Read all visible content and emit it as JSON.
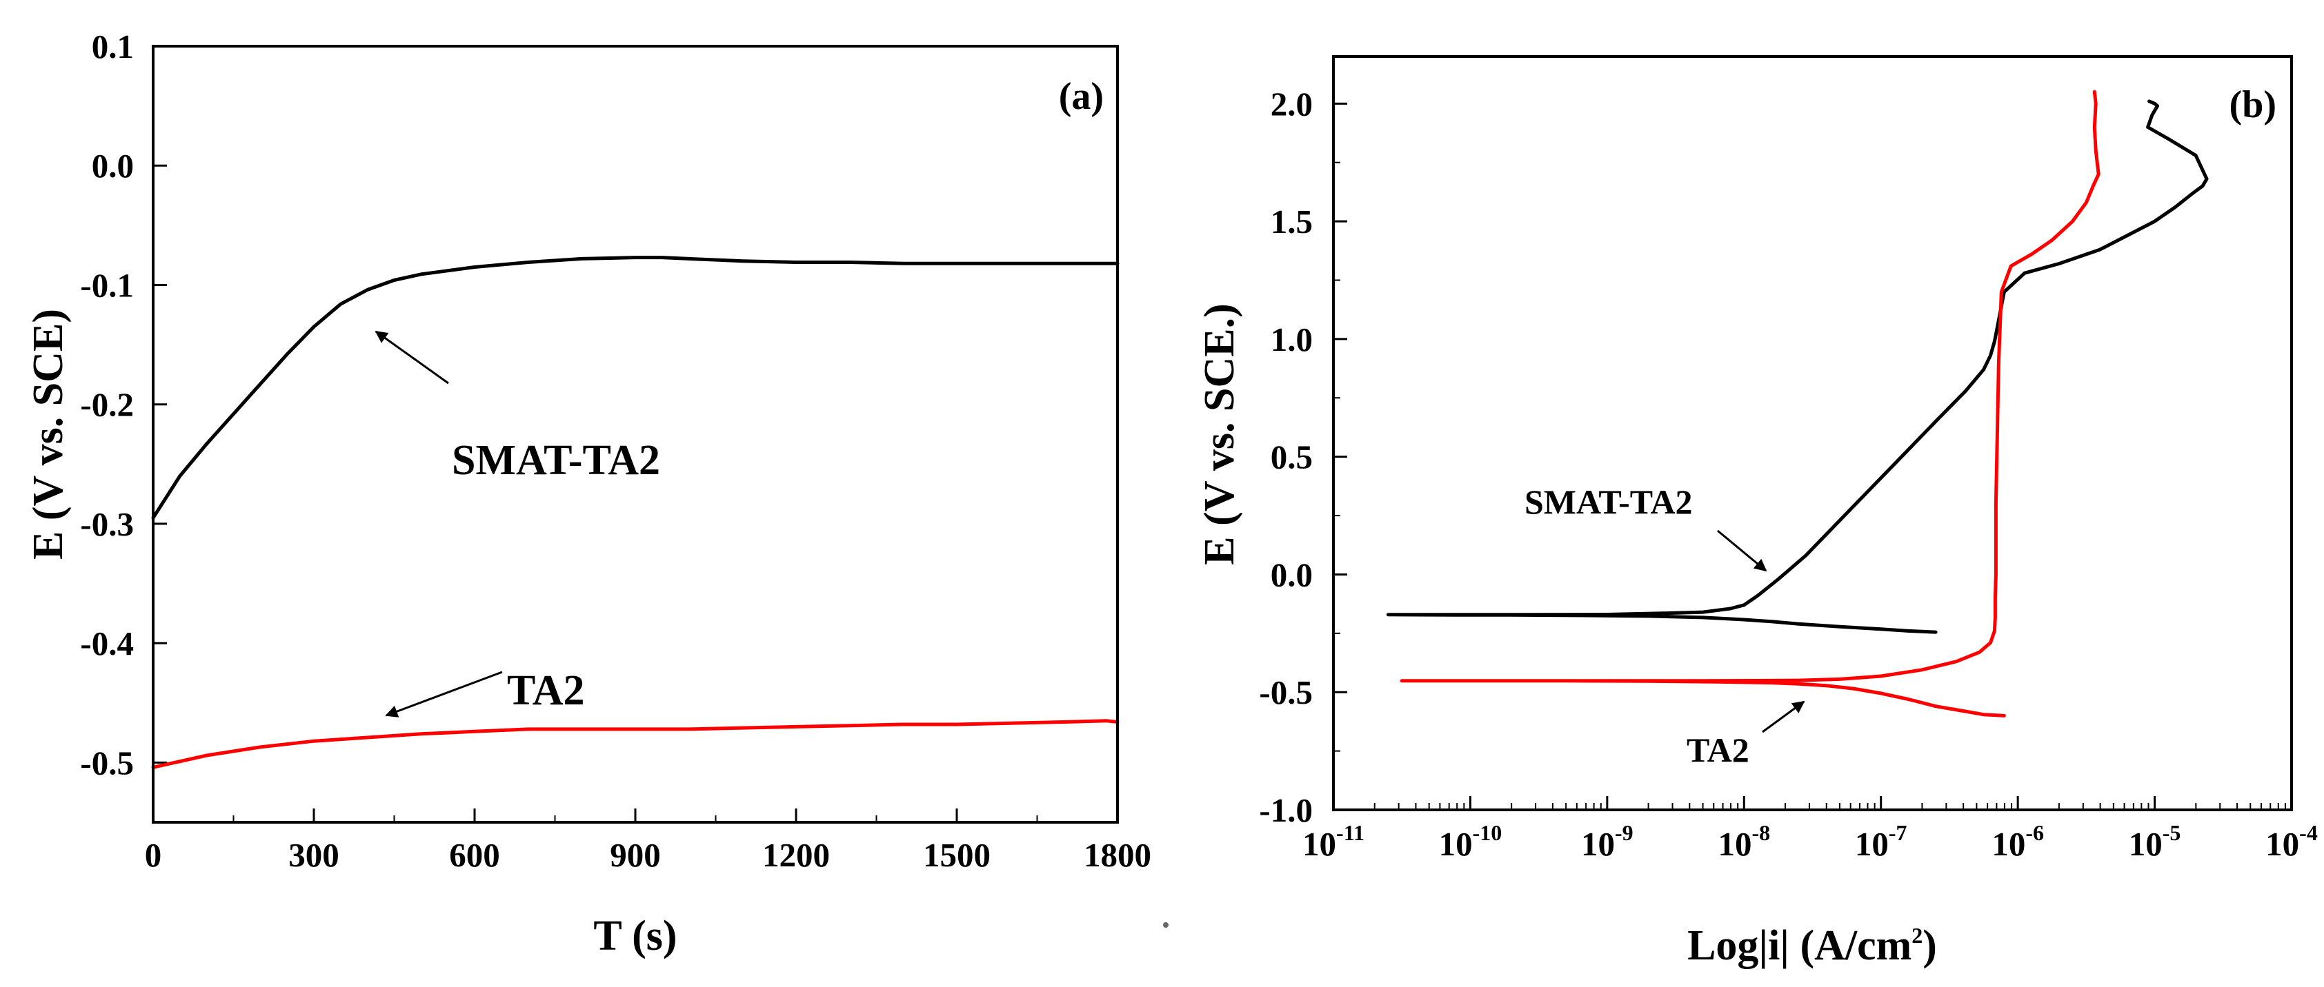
{
  "chart_data": [
    {
      "type": "line",
      "panel_label": "(a)",
      "xlabel": "T (s)",
      "ylabel": "E (V vs. SCE)",
      "xlim": [
        0,
        1800
      ],
      "ylim": [
        -0.55,
        0.1
      ],
      "x_ticks": [
        "0",
        "300",
        "600",
        "900",
        "1200",
        "1500",
        "1800"
      ],
      "y_ticks": [
        "0.1",
        "0.0",
        "-0.1",
        "-0.2",
        "-0.3",
        "-0.4",
        "-0.5"
      ],
      "series": [
        {
          "name": "SMAT-TA2",
          "color": "#000000",
          "x": [
            0,
            50,
            100,
            150,
            200,
            250,
            300,
            350,
            400,
            450,
            500,
            600,
            700,
            800,
            900,
            950,
            1000,
            1100,
            1200,
            1300,
            1400,
            1500,
            1600,
            1700,
            1800
          ],
          "y": [
            -0.295,
            -0.26,
            -0.233,
            -0.208,
            -0.183,
            -0.158,
            -0.135,
            -0.116,
            -0.104,
            -0.096,
            -0.091,
            -0.085,
            -0.081,
            -0.078,
            -0.077,
            -0.077,
            -0.078,
            -0.08,
            -0.081,
            -0.081,
            -0.082,
            -0.082,
            -0.082,
            -0.082,
            -0.082
          ]
        },
        {
          "name": "TA2",
          "color": "#ff0000",
          "x": [
            0,
            50,
            100,
            200,
            300,
            400,
            500,
            600,
            700,
            800,
            900,
            1000,
            1100,
            1200,
            1300,
            1400,
            1500,
            1600,
            1700,
            1780,
            1800
          ],
          "y": [
            -0.504,
            -0.499,
            -0.494,
            -0.487,
            -0.482,
            -0.479,
            -0.476,
            -0.474,
            -0.472,
            -0.472,
            -0.472,
            -0.472,
            -0.471,
            -0.47,
            -0.469,
            -0.468,
            -0.468,
            -0.467,
            -0.466,
            -0.465,
            -0.466
          ]
        }
      ],
      "annotations": [
        "SMAT-TA2",
        "TA2"
      ]
    },
    {
      "type": "line",
      "panel_label": "(b)",
      "xlabel": "Log|i| (A/cm",
      "xlabel_sup": "2",
      "xlabel_end": ")",
      "ylabel": "E (V vs. SCE.)",
      "xscale": "log",
      "xlim": [
        -11,
        -4
      ],
      "ylim": [
        -1.0,
        2.2
      ],
      "x_tick_values": [
        -11,
        -10,
        -9,
        -8,
        -7,
        -6,
        -5,
        -4
      ],
      "x_tick_base": "10",
      "x_tick_exponents": [
        "-11",
        "-10",
        "-9",
        "-8",
        "-7",
        "-6",
        "-5",
        "-4"
      ],
      "y_ticks": [
        "2.0",
        "1.5",
        "1.0",
        "0.5",
        "0.0",
        "-0.5",
        "-1.0"
      ],
      "series": [
        {
          "name": "SMAT-TA2",
          "color": "#000000",
          "log_i": [
            -6.6,
            -6.8,
            -7.0,
            -7.3,
            -7.6,
            -7.8,
            -8.0,
            -8.3,
            -8.7,
            -9.2,
            -9.7,
            -10.1,
            -10.6,
            -10.2,
            -9.6,
            -9.0,
            -8.6,
            -8.3,
            -8.1,
            -8.0,
            -7.9,
            -7.75,
            -7.55,
            -7.35,
            -7.1,
            -6.85,
            -6.6,
            -6.38,
            -6.25,
            -6.2,
            -6.17,
            -6.15,
            -6.1,
            -5.95,
            -5.7,
            -5.4,
            -5.2,
            -5.0,
            -4.85,
            -4.72,
            -4.65,
            -4.62,
            -4.7,
            -4.9,
            -5.05,
            -5.02,
            -4.98,
            -5.0,
            -5.04
          ],
          "E": [
            -0.245,
            -0.24,
            -0.232,
            -0.222,
            -0.21,
            -0.2,
            -0.192,
            -0.183,
            -0.177,
            -0.174,
            -0.172,
            -0.172,
            -0.171,
            -0.171,
            -0.171,
            -0.17,
            -0.165,
            -0.16,
            -0.145,
            -0.13,
            -0.09,
            -0.02,
            0.08,
            0.2,
            0.35,
            0.5,
            0.65,
            0.78,
            0.87,
            0.93,
            0.99,
            1.05,
            1.2,
            1.28,
            1.32,
            1.38,
            1.44,
            1.5,
            1.56,
            1.62,
            1.65,
            1.68,
            1.78,
            1.85,
            1.9,
            1.95,
            1.99,
            2.0,
            2.01
          ]
        },
        {
          "name": "TA2",
          "color": "#ff0000",
          "log_i": [
            -6.1,
            -6.25,
            -6.4,
            -6.6,
            -6.8,
            -7.0,
            -7.2,
            -7.4,
            -7.6,
            -7.8,
            -8.2,
            -8.7,
            -9.3,
            -9.9,
            -10.5,
            -10.0,
            -9.4,
            -8.8,
            -8.3,
            -7.9,
            -7.6,
            -7.3,
            -7.0,
            -6.7,
            -6.45,
            -6.28,
            -6.2,
            -6.17,
            -6.165,
            -6.165,
            -6.16,
            -6.16,
            -6.15,
            -6.14,
            -6.12,
            -6.05,
            -5.9,
            -5.75,
            -5.6,
            -5.5,
            -5.45,
            -5.41,
            -5.43,
            -5.44,
            -5.43,
            -5.44
          ],
          "E": [
            -0.6,
            -0.595,
            -0.58,
            -0.56,
            -0.53,
            -0.505,
            -0.485,
            -0.472,
            -0.465,
            -0.46,
            -0.456,
            -0.453,
            -0.452,
            -0.452,
            -0.452,
            -0.452,
            -0.452,
            -0.452,
            -0.452,
            -0.451,
            -0.45,
            -0.445,
            -0.432,
            -0.405,
            -0.37,
            -0.33,
            -0.29,
            -0.24,
            -0.18,
            -0.1,
            0.0,
            0.3,
            0.6,
            0.9,
            1.2,
            1.31,
            1.36,
            1.42,
            1.5,
            1.58,
            1.65,
            1.7,
            1.8,
            1.9,
            2.0,
            2.05
          ]
        }
      ],
      "annotations": [
        "SMAT-TA2",
        "TA2"
      ]
    }
  ]
}
